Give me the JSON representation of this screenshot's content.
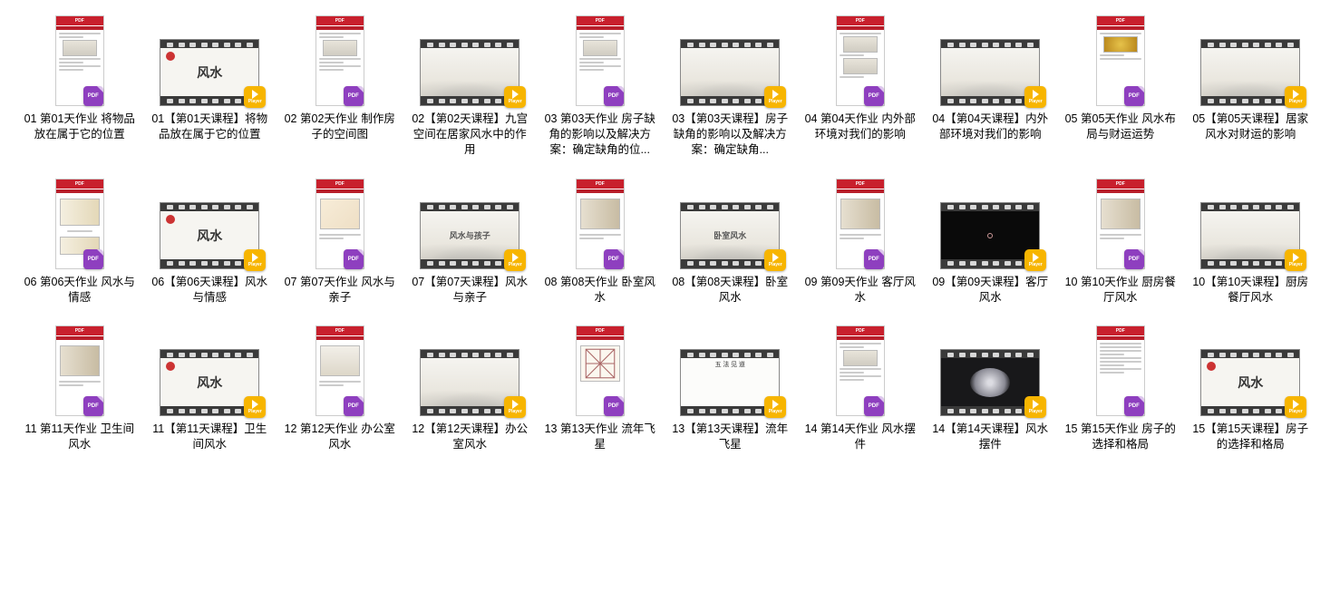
{
  "colors": {
    "pdf_badge": "#8e3fbf",
    "player_badge": "#f7b500",
    "pdf_header": "#c8202d",
    "film_strip": "#3a3a3a",
    "background": "#ffffff",
    "text": "#000000"
  },
  "badge_labels": {
    "pdf": "PDF",
    "player": "Player"
  },
  "layout": {
    "columns": 10,
    "rows": 3,
    "thumb_w": 120,
    "thumb_h": 105
  },
  "items": [
    {
      "label": "01 第01天作业 将物品放在属于它的位置",
      "kind": "pdf",
      "thumb": "doc-lines"
    },
    {
      "label": "01【第01天课程】将物品放在属于它的位置",
      "kind": "video",
      "thumb": "calli",
      "calli": "风水",
      "stamp": true
    },
    {
      "label": "02 第02天作业 制作房子的空间图",
      "kind": "pdf",
      "thumb": "doc-lines"
    },
    {
      "label": "02【第02天课程】九宫空间在居家风水中的作用",
      "kind": "video",
      "thumb": "mist"
    },
    {
      "label": "03 第03天作业 房子缺角的影响以及解决方案：确定缺角的位...",
      "kind": "pdf",
      "thumb": "doc-lines"
    },
    {
      "label": "03【第03天课程】房子缺角的影响以及解决方案：确定缺角...",
      "kind": "video",
      "thumb": "mist"
    },
    {
      "label": "04 第04天作业 内外部环境对我们的影响",
      "kind": "pdf",
      "thumb": "doc-images"
    },
    {
      "label": "04【第04天课程】内外部环境对我们的影响",
      "kind": "video",
      "thumb": "mist"
    },
    {
      "label": "05 第05天作业 风水布局与财运运势",
      "kind": "pdf",
      "thumb": "doc-gold"
    },
    {
      "label": "05【第05天课程】居家风水对财运的影响",
      "kind": "video",
      "thumb": "mist"
    },
    {
      "label": "06 第06天作业 风水与情感",
      "kind": "pdf",
      "thumb": "slide-people"
    },
    {
      "label": "06【第06天课程】风水与情感",
      "kind": "video",
      "thumb": "calli",
      "calli": "风水",
      "stamp": true
    },
    {
      "label": "07 第07天作业 风水与亲子",
      "kind": "pdf",
      "thumb": "slide-baby"
    },
    {
      "label": "07【第07天课程】风水与亲子",
      "kind": "video",
      "thumb": "calli-sm",
      "calli": "风水与孩子"
    },
    {
      "label": "08 第08天作业 卧室风水",
      "kind": "pdf",
      "thumb": "slide-room"
    },
    {
      "label": "08【第08天课程】卧室风水",
      "kind": "video",
      "thumb": "calli-sm",
      "calli": "卧室风水"
    },
    {
      "label": "09 第09天作业 客厅风水",
      "kind": "pdf",
      "thumb": "slide-room"
    },
    {
      "label": "09【第09天课程】客厅风水",
      "kind": "video",
      "thumb": "dark"
    },
    {
      "label": "10 第10天作业 厨房餐厅风水",
      "kind": "pdf",
      "thumb": "slide-room"
    },
    {
      "label": "10【第10天课程】厨房餐厅风水",
      "kind": "video",
      "thumb": "mist"
    },
    {
      "label": "11 第11天作业 卫生间风水",
      "kind": "pdf",
      "thumb": "slide-room"
    },
    {
      "label": "11【第11天课程】卫生间风水",
      "kind": "video",
      "thumb": "calli",
      "calli": "风水",
      "stamp": true
    },
    {
      "label": "12 第12天作业 办公室风水",
      "kind": "pdf",
      "thumb": "slide-office"
    },
    {
      "label": "12【第12天课程】办公室风水",
      "kind": "video",
      "thumb": "mist"
    },
    {
      "label": "13 第13天作业 流年飞星",
      "kind": "pdf",
      "thumb": "slide-geom"
    },
    {
      "label": "13【第13天课程】流年飞星",
      "kind": "video",
      "thumb": "grid-icons",
      "titletop": "五 法 见 道"
    },
    {
      "label": "14 第14天作业 风水摆件",
      "kind": "pdf",
      "thumb": "doc-lines"
    },
    {
      "label": "14【第14天课程】风水摆件",
      "kind": "video",
      "thumb": "stone"
    },
    {
      "label": "15 第15天作业 房子的选择和格局",
      "kind": "pdf",
      "thumb": "doc-text"
    },
    {
      "label": "15【第15天课程】房子的选择和格局",
      "kind": "video",
      "thumb": "calli",
      "calli": "风水",
      "stamp": true
    }
  ]
}
